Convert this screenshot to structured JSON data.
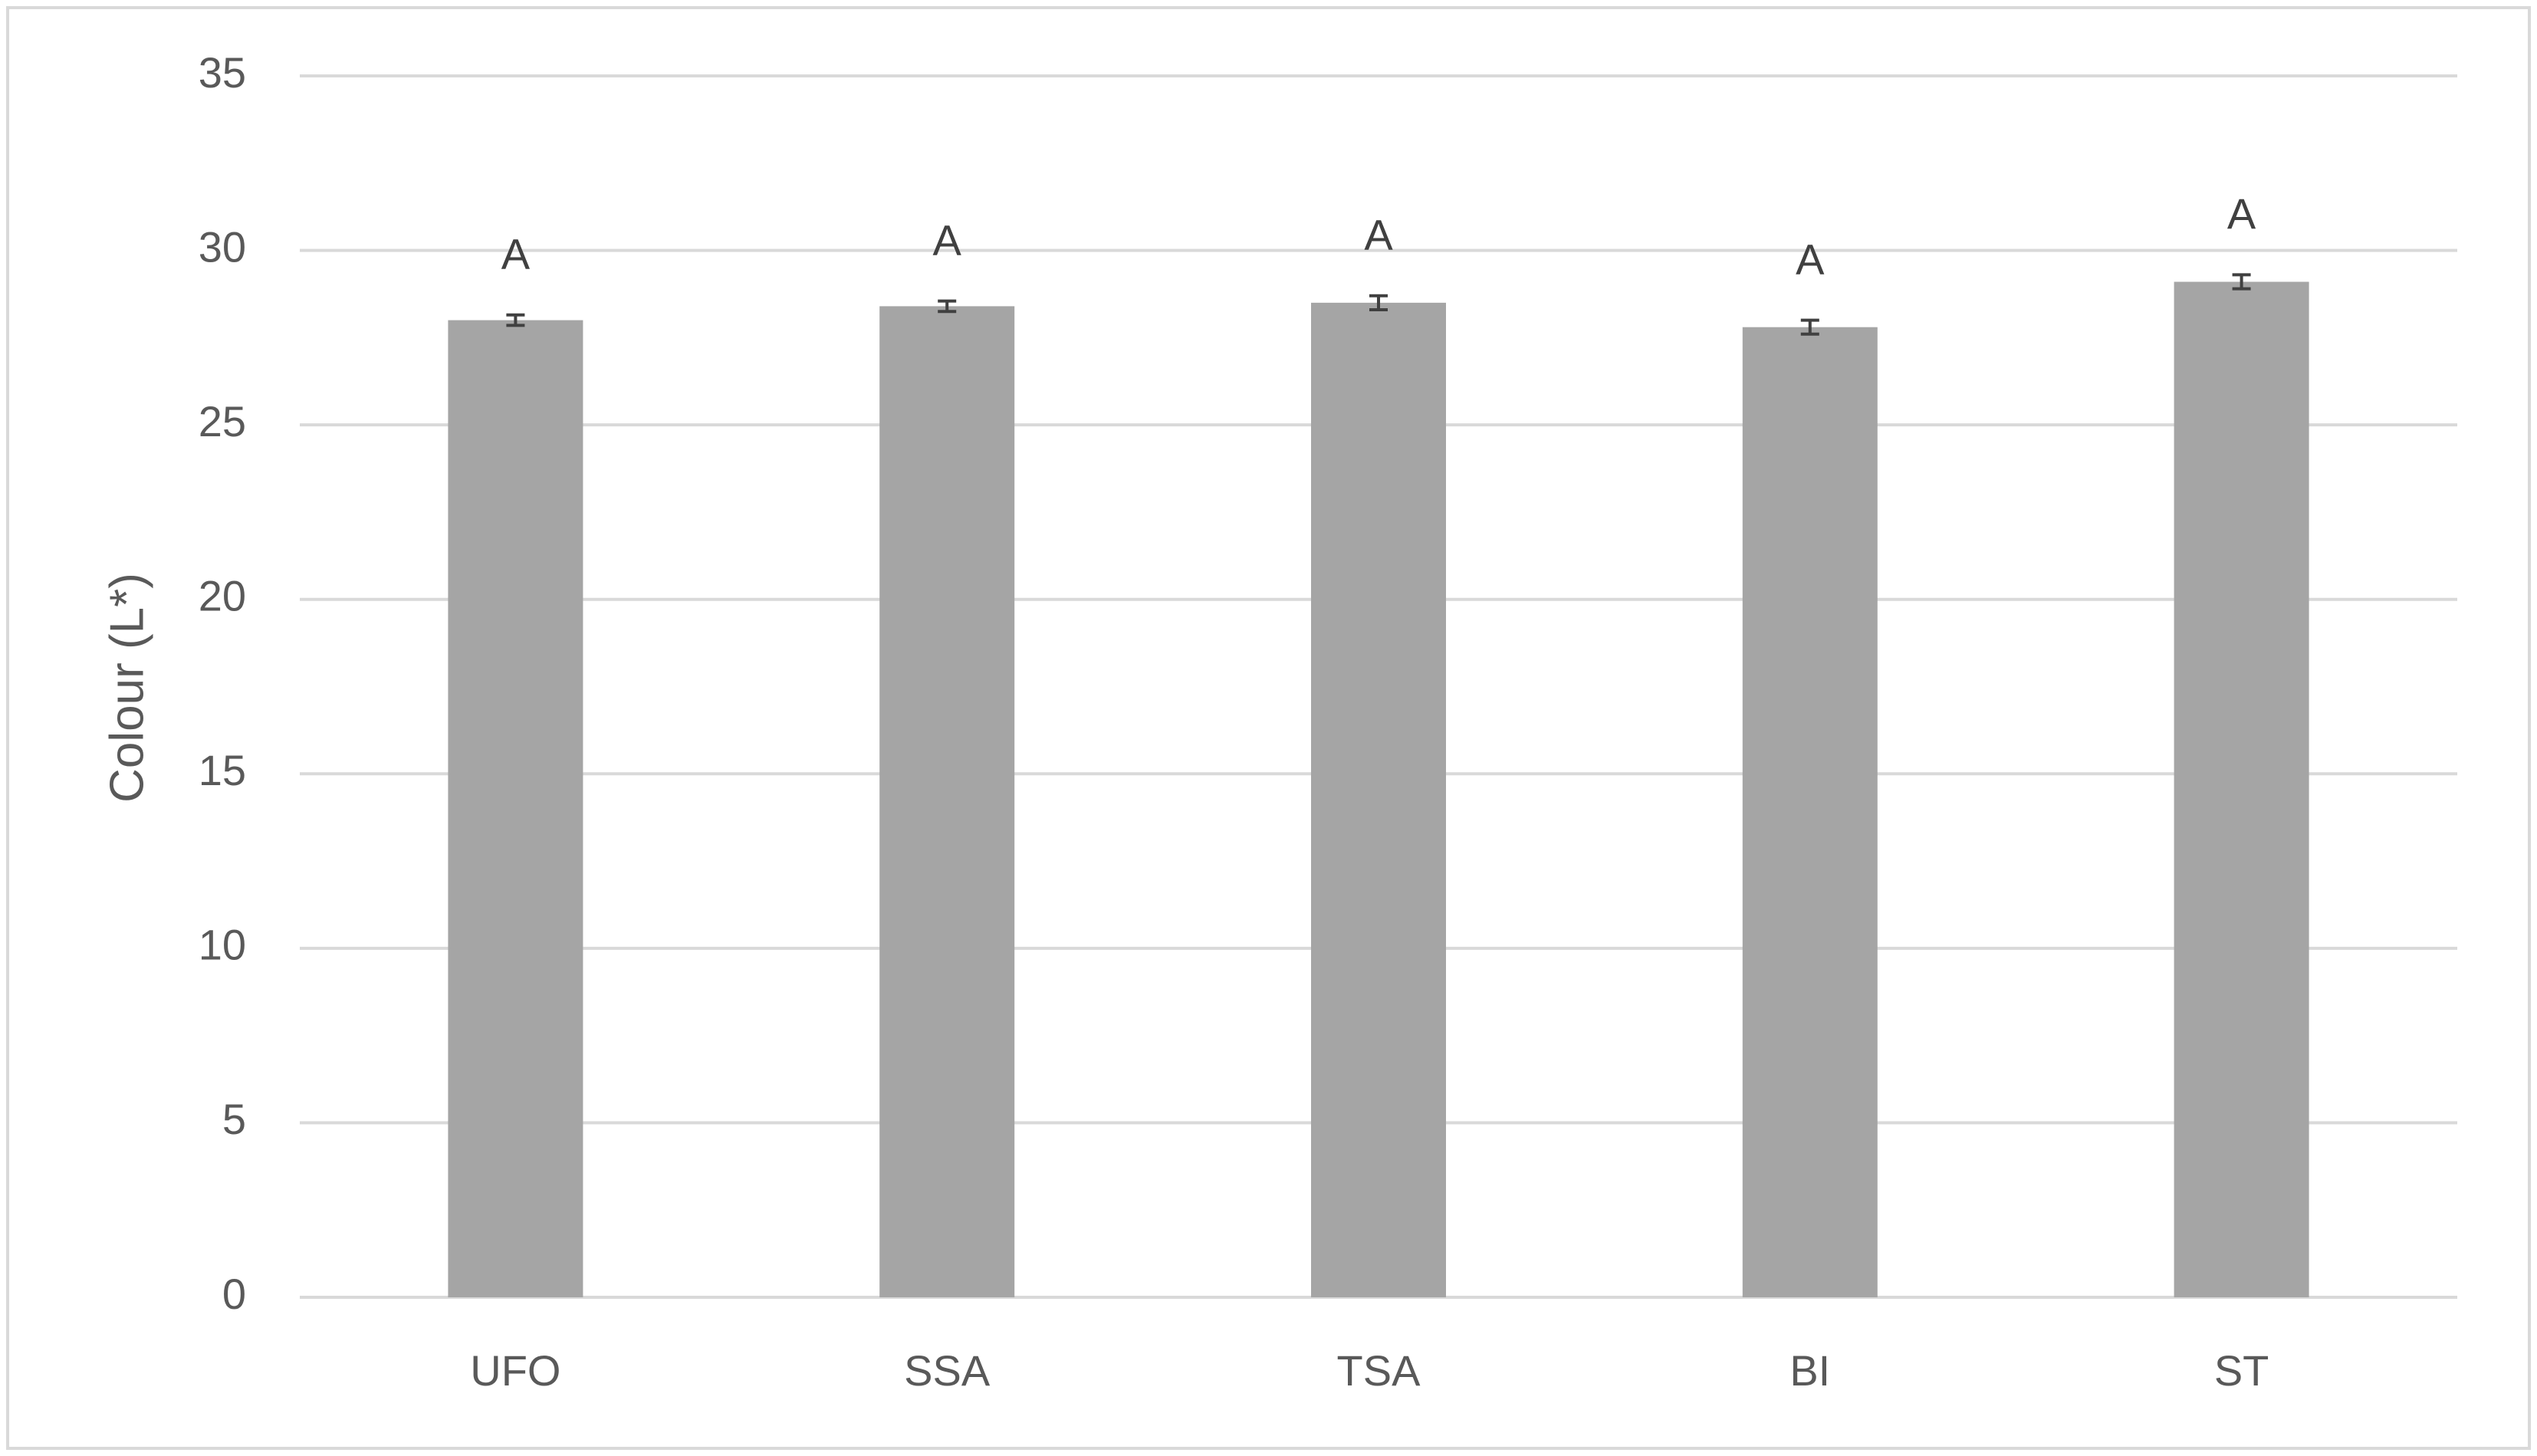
{
  "chart_data": {
    "type": "bar",
    "y_label": "Colour (L*)",
    "categories": [
      "UFO",
      "SSA",
      "TSA",
      "BI",
      "ST"
    ],
    "values": [
      28.0,
      28.4,
      28.5,
      27.8,
      29.1
    ],
    "errors": [
      0.15,
      0.15,
      0.2,
      0.2,
      0.2
    ],
    "group_labels": [
      "A",
      "A",
      "A",
      "A",
      "A"
    ],
    "color": "#a5a5a5",
    "ylim": [
      0,
      35
    ],
    "yticks": [
      0,
      5,
      10,
      15,
      20,
      25,
      30,
      35
    ],
    "grid": true
  }
}
